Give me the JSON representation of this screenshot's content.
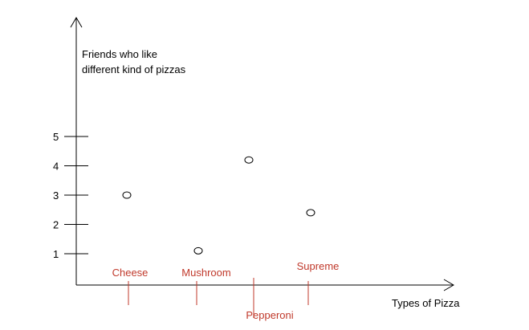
{
  "chart_data": {
    "type": "scatter",
    "title": "",
    "ylabel_lines": [
      "Friends who like",
      "different kind of pizzas"
    ],
    "xlabel": "Types of Pizza",
    "y_ticks": [
      1,
      2,
      3,
      4,
      5
    ],
    "ylim": [
      0,
      5
    ],
    "grid": false,
    "categories": [
      "Cheese",
      "Mushroom",
      "Pepperoni",
      "Supreme"
    ],
    "category_label_position": [
      "above",
      "above",
      "below",
      "above"
    ],
    "values": [
      3,
      1.1,
      4.2,
      2.4
    ],
    "colors": {
      "axis": "#000000",
      "category": "#c0392b",
      "marker": "#000000"
    }
  }
}
